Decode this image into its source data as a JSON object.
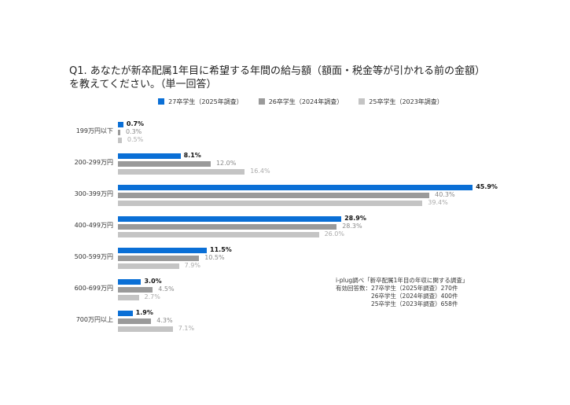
{
  "chart_data": {
    "type": "bar",
    "orientation": "horizontal",
    "title_line1": "Q1. あなたが新卒配属1年目に希望する年間の給与額（額面・税金等が引かれる前の金額）",
    "title_line2": "を教えてください。（単一回答）",
    "categories": [
      "199万円以下",
      "200-299万円",
      "300-399万円",
      "400-499万円",
      "500-599万円",
      "600-699万円",
      "700万円以上"
    ],
    "series": [
      {
        "name": "27卒学生（2025年調査）",
        "color": "#0a6fd6",
        "values": [
          0.7,
          8.1,
          45.9,
          28.9,
          11.5,
          3.0,
          1.9
        ]
      },
      {
        "name": "26卒学生（2024年調査）",
        "color": "#9a9a9a",
        "values": [
          0.3,
          12.0,
          40.3,
          28.3,
          10.5,
          4.5,
          4.3
        ]
      },
      {
        "name": "25卒学生（2023年調査）",
        "color": "#c4c4c4",
        "values": [
          0.5,
          16.4,
          39.4,
          26.0,
          7.9,
          2.7,
          7.1
        ]
      }
    ],
    "unit": "%",
    "legend_position": "top"
  },
  "note": {
    "line1": "i-plug調べ「新卒配属1年目の年収に関する調査」",
    "line2": "有効回答数：27卒学生（2025年調査）270件",
    "line3": "　　　　　　26卒学生（2024年調査）400件",
    "line4": "　　　　　　25卒学生（2023年調査）658件"
  }
}
